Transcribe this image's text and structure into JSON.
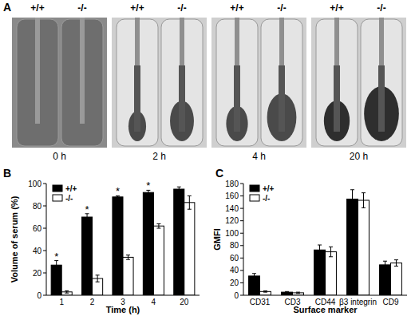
{
  "panel_labels": [
    "A",
    "B",
    "C"
  ],
  "photo_panel": {
    "photos": [
      {
        "time": "0 h",
        "genotypes": [
          "+/+",
          "-/-"
        ]
      },
      {
        "time": "2 h",
        "genotypes": [
          "+/+",
          "-/-"
        ]
      },
      {
        "time": "4 h",
        "genotypes": [
          "+/+",
          "-/-"
        ]
      },
      {
        "time": "20 h",
        "genotypes": [
          "+/+",
          "-/-"
        ]
      }
    ]
  },
  "chart_data": [
    {
      "type": "bar",
      "x_label": "Time (h)",
      "y_label": "Volume of serum (%)",
      "categories": [
        "1",
        "2",
        "3",
        "4",
        "20"
      ],
      "series": [
        {
          "name": "+/+",
          "color": "#000000",
          "values": [
            27,
            70,
            88,
            92,
            95
          ],
          "errors": [
            4,
            3,
            1,
            2,
            2
          ]
        },
        {
          "name": "-/-",
          "color": "#ffffff",
          "values": [
            3,
            15,
            34,
            62,
            83
          ],
          "errors": [
            1,
            3,
            2,
            2,
            6
          ]
        }
      ],
      "annotations": [
        "*",
        "*",
        "*",
        "*",
        null
      ],
      "ylim": [
        0,
        100
      ],
      "yticks": [
        0,
        20,
        40,
        60,
        80,
        100
      ],
      "grid": false,
      "legend": "top-left"
    },
    {
      "type": "bar",
      "x_label": "Surface marker",
      "y_label": "GMFI",
      "categories": [
        "CD31",
        "CD3",
        "CD44",
        "β3 integrin",
        "CD9"
      ],
      "series": [
        {
          "name": "+/+",
          "color": "#000000",
          "values": [
            31,
            5,
            73,
            155,
            49
          ],
          "errors": [
            4,
            1,
            8,
            15,
            6
          ]
        },
        {
          "name": "-/-",
          "color": "#ffffff",
          "values": [
            6,
            4,
            70,
            153,
            52
          ],
          "errors": [
            1,
            1,
            8,
            12,
            5
          ]
        }
      ],
      "ylim": [
        0,
        180
      ],
      "yticks": [
        0,
        20,
        40,
        60,
        80,
        100,
        120,
        140,
        160,
        180
      ],
      "grid": false,
      "legend": "top-left"
    }
  ]
}
